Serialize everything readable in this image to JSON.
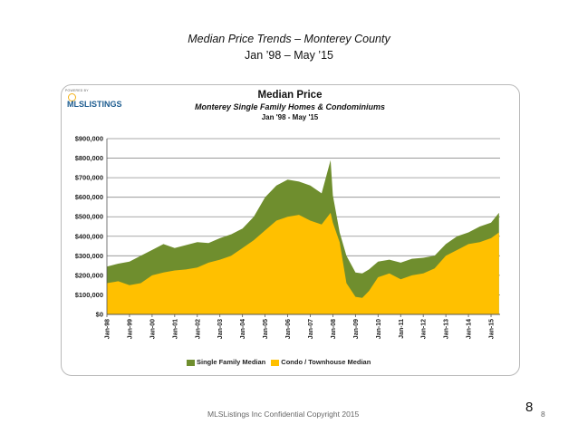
{
  "slide": {
    "title": "Median Price Trends – Monterey County",
    "subtitle": "Jan ’98 – May ’15",
    "footer": "MLSListings Inc Confidential Copyright 2015",
    "page_number": "8",
    "page_number_small": "8"
  },
  "logo": {
    "powered_by": "POWERED BY",
    "name": "MLSLISTINGS"
  },
  "chart_data": {
    "type": "area",
    "title": "Median Price",
    "subtitle": "Monterey Single Family Homes & Condominiums",
    "subtitle2": "Jan '98 - May '15",
    "x": [
      1998.0,
      1998.5,
      1999.0,
      1999.5,
      2000.0,
      2000.5,
      2001.0,
      2001.5,
      2002.0,
      2002.5,
      2003.0,
      2003.5,
      2004.0,
      2004.5,
      2005.0,
      2005.5,
      2006.0,
      2006.5,
      2007.0,
      2007.5,
      2007.9,
      2008.0,
      2008.3,
      2008.6,
      2009.0,
      2009.3,
      2009.6,
      2010.0,
      2010.5,
      2011.0,
      2011.5,
      2012.0,
      2012.5,
      2013.0,
      2013.5,
      2014.0,
      2014.5,
      2015.0,
      2015.35
    ],
    "xticks": [
      "Jan-98",
      "Jan-99",
      "Jan-00",
      "Jan-01",
      "Jan-02",
      "Jan-03",
      "Jan-04",
      "Jan-05",
      "Jan-06",
      "Jan-07",
      "Jan-08",
      "Jan-09",
      "Jan-10",
      "Jan-11",
      "Jan-12",
      "Jan-13",
      "Jan-14",
      "Jan-15"
    ],
    "yticks": [
      "$0",
      "$100,000",
      "$200,000",
      "$300,000",
      "$400,000",
      "$500,000",
      "$600,000",
      "$700,000",
      "$800,000",
      "$900,000"
    ],
    "ylim": [
      0,
      900000
    ],
    "grid": true,
    "legend_position": "bottom",
    "series": [
      {
        "name": "Single Family Median",
        "color": "#6f8e2e",
        "values": [
          245000,
          260000,
          270000,
          300000,
          330000,
          360000,
          340000,
          355000,
          370000,
          365000,
          390000,
          410000,
          440000,
          500000,
          600000,
          660000,
          690000,
          680000,
          660000,
          620000,
          790000,
          610000,
          420000,
          300000,
          215000,
          210000,
          230000,
          270000,
          280000,
          265000,
          285000,
          290000,
          300000,
          360000,
          400000,
          420000,
          450000,
          470000,
          520000
        ]
      },
      {
        "name": "Condo / Townhouse Median",
        "color": "#ffc000",
        "values": [
          160000,
          170000,
          150000,
          160000,
          200000,
          215000,
          225000,
          230000,
          240000,
          265000,
          280000,
          300000,
          340000,
          380000,
          430000,
          480000,
          500000,
          510000,
          480000,
          460000,
          520000,
          470000,
          370000,
          160000,
          90000,
          85000,
          120000,
          190000,
          210000,
          180000,
          200000,
          210000,
          235000,
          300000,
          330000,
          360000,
          370000,
          390000,
          420000
        ]
      }
    ]
  }
}
